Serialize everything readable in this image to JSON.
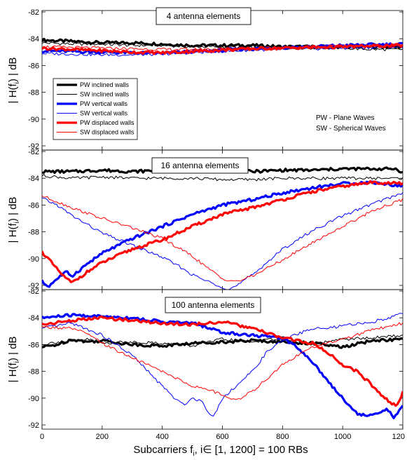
{
  "chart_data": [
    {
      "type": "line",
      "title": "4 antenna elements",
      "ylabel": "| H(f_i) | dB",
      "xlim": [
        0,
        1200
      ],
      "ylim": [
        -92,
        -82
      ],
      "y_ticks": [
        "-82",
        "-84",
        "-86",
        "-88",
        "-90",
        "-92"
      ],
      "legend": {
        "placement": "left",
        "entries": [
          "PW inclined walls",
          "SW inclined walls",
          "PW vertical walls",
          "SW vertical walls",
          "PW displaced walls",
          "SW displaced walls"
        ]
      },
      "notes": [
        "PW - Plane Waves",
        "SW - Spherical Waves"
      ],
      "series": [
        {
          "name": "PW inclined walls",
          "color": "#000000",
          "width": 3.2,
          "x": [
            0,
            100,
            200,
            300,
            400,
            500,
            600,
            700,
            800,
            900,
            1000,
            1100,
            1200
          ],
          "values": [
            -84.1,
            -84.2,
            -84.3,
            -84.3,
            -84.4,
            -84.5,
            -84.5,
            -84.5,
            -84.6,
            -84.6,
            -84.6,
            -84.6,
            -84.6
          ]
        },
        {
          "name": "SW inclined walls",
          "color": "#000000",
          "width": 1,
          "x": [
            0,
            100,
            200,
            300,
            400,
            500,
            600,
            700,
            800,
            900,
            1000,
            1100,
            1200
          ],
          "values": [
            -84.3,
            -84.4,
            -84.4,
            -84.5,
            -84.5,
            -84.6,
            -84.6,
            -84.7,
            -84.7,
            -84.7,
            -84.7,
            -84.8,
            -84.8
          ]
        },
        {
          "name": "PW vertical walls",
          "color": "#0000ff",
          "width": 3.2,
          "x": [
            0,
            100,
            200,
            300,
            400,
            500,
            600,
            700,
            800,
            900,
            1000,
            1100,
            1200
          ],
          "values": [
            -84.9,
            -84.95,
            -85.0,
            -85.05,
            -85.1,
            -84.95,
            -84.85,
            -84.75,
            -84.65,
            -84.6,
            -84.5,
            -84.45,
            -84.4
          ]
        },
        {
          "name": "SW vertical walls",
          "color": "#0000ff",
          "width": 1,
          "x": [
            0,
            100,
            200,
            300,
            400,
            500,
            600,
            700,
            800,
            900,
            1000,
            1100,
            1200
          ],
          "values": [
            -85.1,
            -85.15,
            -85.2,
            -85.2,
            -85.15,
            -85.05,
            -84.95,
            -84.85,
            -84.8,
            -84.75,
            -84.7,
            -84.65,
            -84.6
          ]
        },
        {
          "name": "PW displaced walls",
          "color": "#ff0000",
          "width": 3.2,
          "x": [
            0,
            100,
            200,
            300,
            400,
            500,
            600,
            700,
            800,
            900,
            1000,
            1100,
            1200
          ],
          "values": [
            -84.7,
            -84.8,
            -84.9,
            -85.0,
            -85.05,
            -84.95,
            -84.85,
            -84.75,
            -84.7,
            -84.65,
            -84.6,
            -84.55,
            -84.5
          ]
        },
        {
          "name": "SW displaced walls",
          "color": "#ff0000",
          "width": 1,
          "x": [
            0,
            100,
            200,
            300,
            400,
            500,
            600,
            700,
            800,
            900,
            1000,
            1100,
            1200
          ],
          "values": [
            -84.6,
            -84.65,
            -84.7,
            -84.75,
            -84.8,
            -84.8,
            -84.75,
            -84.7,
            -84.65,
            -84.6,
            -84.55,
            -84.55,
            -84.5
          ]
        }
      ]
    },
    {
      "type": "line",
      "title": "16 antenna elements",
      "ylabel": "| H(f_i) | dB",
      "xlim": [
        0,
        1200
      ],
      "ylim": [
        -92,
        -82
      ],
      "y_ticks": [
        "-82",
        "-84",
        "-86",
        "-88",
        "-90",
        "-92"
      ],
      "series": [
        {
          "name": "PW inclined walls",
          "color": "#000000",
          "width": 3.2,
          "x": [
            0,
            100,
            200,
            300,
            400,
            500,
            600,
            700,
            800,
            900,
            1000,
            1100,
            1180,
            1200
          ],
          "values": [
            -83.5,
            -83.5,
            -83.4,
            -83.5,
            -83.4,
            -83.4,
            -83.4,
            -83.5,
            -83.4,
            -83.4,
            -83.3,
            -83.3,
            -83.3,
            -83.6
          ]
        },
        {
          "name": "SW inclined walls",
          "color": "#000000",
          "width": 1,
          "x": [
            0,
            100,
            200,
            300,
            400,
            500,
            600,
            700,
            800,
            900,
            1000,
            1100,
            1200
          ],
          "values": [
            -83.8,
            -84.0,
            -83.9,
            -84.0,
            -84.0,
            -84.0,
            -84.1,
            -84.1,
            -84.0,
            -84.0,
            -84.0,
            -84.0,
            -84.0
          ]
        },
        {
          "name": "PW vertical walls",
          "color": "#0000ff",
          "width": 3.2,
          "x": [
            0,
            20,
            50,
            80,
            100,
            150,
            200,
            300,
            400,
            500,
            600,
            700,
            800,
            900,
            1000,
            1100,
            1200
          ],
          "values": [
            -91.7,
            -92.1,
            -91.5,
            -91.0,
            -91.3,
            -90.4,
            -89.6,
            -88.5,
            -87.6,
            -86.7,
            -86.0,
            -85.6,
            -85.1,
            -84.7,
            -84.4,
            -84.3,
            -84.6
          ]
        },
        {
          "name": "SW vertical walls",
          "color": "#0000ff",
          "width": 1,
          "x": [
            0,
            50,
            100,
            200,
            300,
            400,
            450,
            500,
            550,
            600,
            620,
            650,
            700,
            800,
            900,
            1000,
            1100,
            1200
          ],
          "values": [
            -85.5,
            -86.0,
            -86.8,
            -88.1,
            -89.0,
            -89.9,
            -90.5,
            -91.2,
            -91.7,
            -92.1,
            -92.3,
            -92.0,
            -91.2,
            -89.3,
            -87.9,
            -86.8,
            -85.9,
            -85.1
          ]
        },
        {
          "name": "PW displaced walls",
          "color": "#ff0000",
          "width": 3.2,
          "x": [
            0,
            20,
            50,
            80,
            100,
            150,
            200,
            300,
            400,
            500,
            600,
            700,
            800,
            900,
            1000,
            1100,
            1200
          ],
          "values": [
            -89.5,
            -90.0,
            -90.8,
            -91.5,
            -91.8,
            -91.0,
            -90.3,
            -89.3,
            -88.6,
            -87.6,
            -86.7,
            -86.2,
            -85.6,
            -85.0,
            -84.6,
            -84.3,
            -84.4
          ]
        },
        {
          "name": "SW displaced walls",
          "color": "#ff0000",
          "width": 1,
          "x": [
            0,
            100,
            200,
            300,
            400,
            500,
            550,
            600,
            650,
            700,
            800,
            900,
            1000,
            1100,
            1200
          ],
          "values": [
            -85.3,
            -86.2,
            -87.0,
            -87.7,
            -88.5,
            -89.8,
            -90.7,
            -91.5,
            -91.7,
            -91.3,
            -90.1,
            -88.8,
            -87.6,
            -86.4,
            -85.6
          ]
        }
      ]
    },
    {
      "type": "line",
      "title": "100 antenna elements",
      "ylabel": "| H(f_i) | dB",
      "xlabel": "Subcarriers f_i, i∈ [1, 1200] = 100 RBs",
      "xlim": [
        0,
        1200
      ],
      "ylim": [
        -92,
        -82
      ],
      "y_ticks": [
        "-82",
        "-84",
        "-86",
        "-88",
        "-90",
        "-92"
      ],
      "x_ticks": [
        "0",
        "200",
        "400",
        "600",
        "800",
        "1000",
        "120"
      ],
      "series": [
        {
          "name": "PW inclined walls",
          "color": "#000000",
          "width": 3.2,
          "x": [
            0,
            50,
            100,
            150,
            200,
            300,
            400,
            500,
            600,
            700,
            800,
            900,
            1000,
            1100,
            1200
          ],
          "values": [
            -86.2,
            -86.0,
            -85.6,
            -85.8,
            -85.7,
            -86.0,
            -86.1,
            -85.9,
            -85.8,
            -85.7,
            -85.8,
            -85.9,
            -86.2,
            -85.7,
            -85.6
          ]
        },
        {
          "name": "SW inclined walls",
          "color": "#000000",
          "width": 1,
          "x": [
            0,
            50,
            100,
            150,
            200,
            300,
            400,
            500,
            600,
            700,
            800,
            900,
            1000,
            1100,
            1200
          ],
          "values": [
            -86.0,
            -85.8,
            -85.8,
            -85.6,
            -85.9,
            -85.8,
            -85.9,
            -86.1,
            -85.6,
            -85.8,
            -85.5,
            -86.0,
            -85.6,
            -85.5,
            -85.3
          ]
        },
        {
          "name": "PW vertical walls",
          "color": "#0000ff",
          "width": 3.2,
          "x": [
            0,
            100,
            200,
            300,
            400,
            500,
            550,
            600,
            700,
            800,
            850,
            900,
            950,
            1000,
            1050,
            1100,
            1150,
            1170,
            1200
          ],
          "values": [
            -84.0,
            -83.8,
            -83.9,
            -84.0,
            -84.3,
            -84.4,
            -84.7,
            -85.1,
            -85.3,
            -85.5,
            -86.2,
            -87.3,
            -88.7,
            -90.0,
            -91.2,
            -91.3,
            -90.8,
            -91.5,
            -90.6
          ]
        },
        {
          "name": "SW vertical walls",
          "color": "#0000ff",
          "width": 1,
          "x": [
            0,
            100,
            200,
            300,
            400,
            450,
            470,
            500,
            530,
            550,
            570,
            600,
            650,
            700,
            750,
            800,
            850,
            900,
            950,
            1000,
            1100,
            1200
          ],
          "values": [
            -84.8,
            -84.4,
            -85.3,
            -86.8,
            -89.1,
            -90.2,
            -90.5,
            -90.0,
            -90.2,
            -90.9,
            -91.4,
            -90.0,
            -89.0,
            -88.0,
            -86.5,
            -85.7,
            -85.2,
            -84.8,
            -84.8,
            -84.6,
            -84.3,
            -83.7
          ]
        },
        {
          "name": "PW displaced walls",
          "color": "#ff0000",
          "width": 3.2,
          "x": [
            0,
            100,
            200,
            300,
            400,
            500,
            600,
            700,
            800,
            900,
            950,
            1000,
            1050,
            1100,
            1150,
            1180,
            1200
          ],
          "values": [
            -84.5,
            -84.2,
            -84.0,
            -84.2,
            -84.4,
            -84.5,
            -84.3,
            -84.8,
            -85.5,
            -85.9,
            -86.6,
            -87.5,
            -88.0,
            -89.1,
            -90.2,
            -90.6,
            -89.6
          ]
        },
        {
          "name": "SW displaced walls",
          "color": "#ff0000",
          "width": 1,
          "x": [
            0,
            100,
            150,
            200,
            300,
            400,
            500,
            550,
            600,
            650,
            700,
            750,
            800,
            850,
            900,
            1000,
            1100,
            1200
          ],
          "values": [
            -84.7,
            -84.8,
            -85.2,
            -85.9,
            -87.0,
            -88.0,
            -89.1,
            -89.3,
            -89.8,
            -90.1,
            -89.5,
            -88.5,
            -87.5,
            -86.8,
            -86.2,
            -85.6,
            -84.9,
            -84.4
          ]
        }
      ]
    }
  ]
}
